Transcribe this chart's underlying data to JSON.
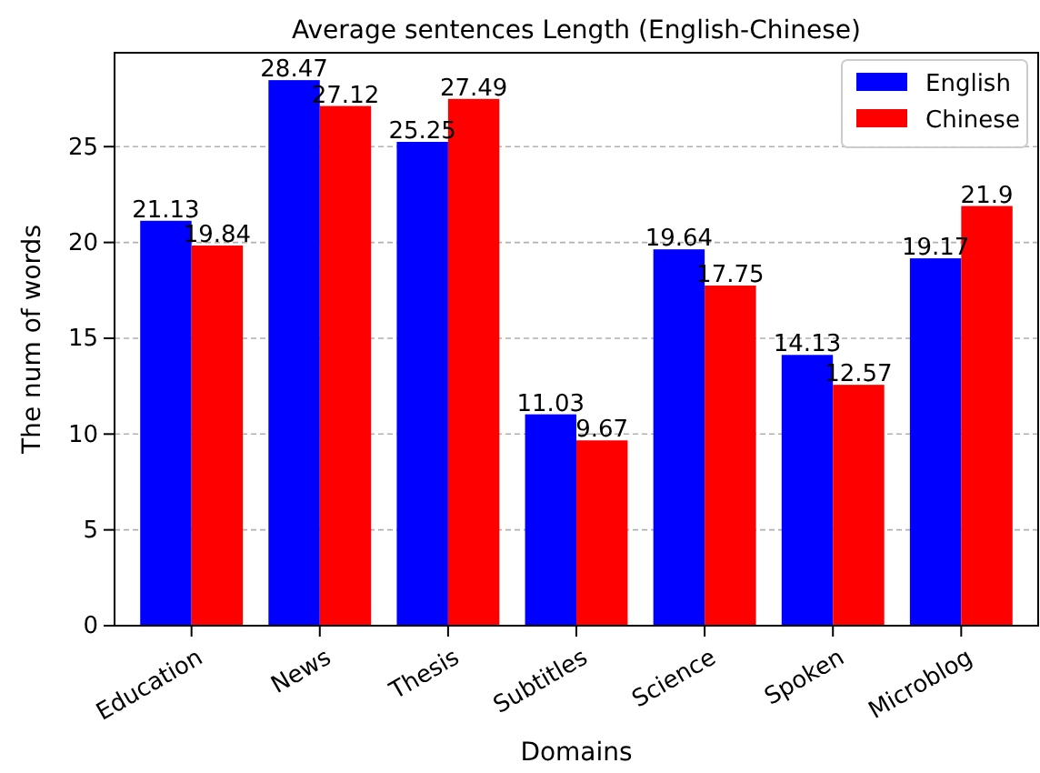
{
  "chart_data": {
    "type": "bar",
    "title": "Average sentences Length (English-Chinese)",
    "xlabel": "Domains",
    "ylabel": "The num of words",
    "categories": [
      "Education",
      "News",
      "Thesis",
      "Subtitles",
      "Science",
      "Spoken",
      "Microblog"
    ],
    "series": [
      {
        "name": "English",
        "color": "#0000ff",
        "values": [
          21.13,
          28.47,
          25.25,
          11.03,
          19.64,
          14.13,
          19.17
        ]
      },
      {
        "name": "Chinese",
        "color": "#ff0000",
        "values": [
          19.84,
          27.12,
          27.49,
          9.67,
          17.75,
          12.57,
          21.9
        ]
      }
    ],
    "ylim": [
      0,
      29.9
    ],
    "yticks": [
      0,
      5,
      10,
      15,
      20,
      25
    ],
    "grid": "y",
    "legend": "top right",
    "data_labels": true
  }
}
